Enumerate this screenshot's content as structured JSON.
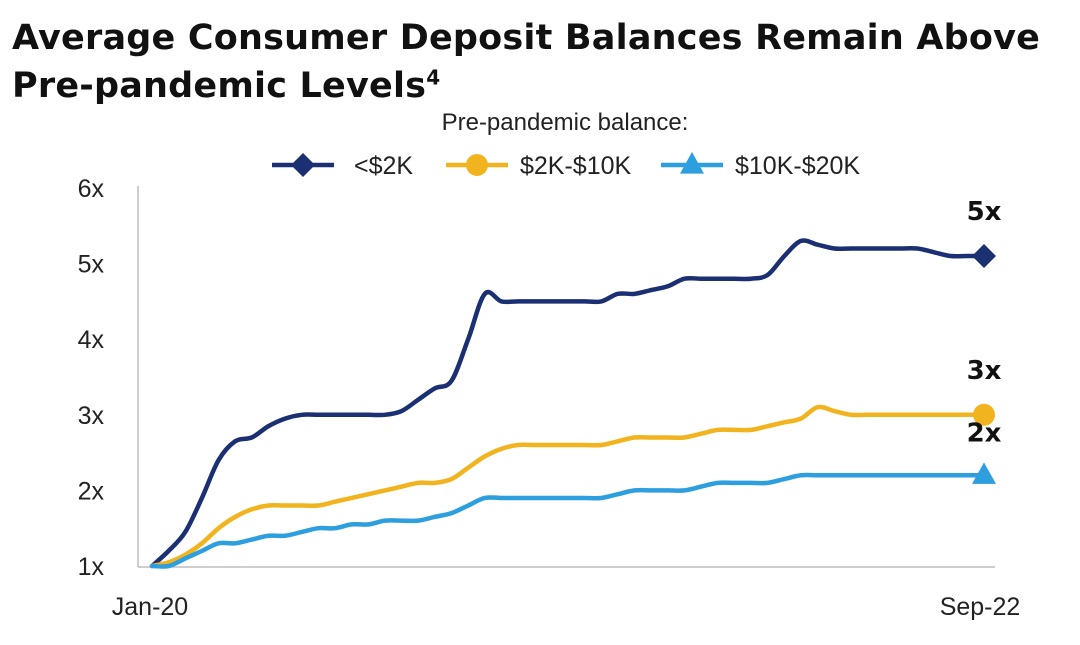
{
  "chart_data": {
    "type": "line",
    "title": "Average Consumer Deposit Balances Remain Above Pre-pandemic Levels",
    "title_superscript": "4",
    "legend_title": "Pre-pandemic balance:",
    "xlabel": "",
    "ylabel": "",
    "x_tick_labels": [
      "Jan-20",
      "Sep-22"
    ],
    "y_ticks": [
      1,
      2,
      3,
      4,
      5,
      6
    ],
    "y_tick_labels": [
      "1x",
      "2x",
      "3x",
      "4x",
      "5x",
      "6x"
    ],
    "ylim": [
      1,
      6
    ],
    "x": [
      0,
      0.02,
      0.04,
      0.06,
      0.08,
      0.1,
      0.12,
      0.14,
      0.16,
      0.18,
      0.2,
      0.22,
      0.24,
      0.26,
      0.28,
      0.3,
      0.32,
      0.34,
      0.36,
      0.38,
      0.4,
      0.42,
      0.44,
      0.46,
      0.48,
      0.5,
      0.52,
      0.54,
      0.56,
      0.58,
      0.6,
      0.62,
      0.64,
      0.66,
      0.68,
      0.7,
      0.72,
      0.74,
      0.76,
      0.78,
      0.8,
      0.82,
      0.84,
      0.86,
      0.88,
      0.9,
      0.92,
      0.94,
      0.96,
      0.98,
      1.0
    ],
    "series": [
      {
        "name": "<$2K",
        "color": "#1b2f73",
        "marker": "diamond",
        "end_label": "5x",
        "values": [
          1.0,
          1.2,
          1.45,
          1.9,
          2.4,
          2.65,
          2.7,
          2.85,
          2.95,
          3.0,
          3.0,
          3.0,
          3.0,
          3.0,
          3.0,
          3.05,
          3.2,
          3.35,
          3.45,
          4.0,
          4.6,
          4.5,
          4.5,
          4.5,
          4.5,
          4.5,
          4.5,
          4.5,
          4.6,
          4.6,
          4.65,
          4.7,
          4.8,
          4.8,
          4.8,
          4.8,
          4.8,
          4.85,
          5.1,
          5.3,
          5.25,
          5.2,
          5.2,
          5.2,
          5.2,
          5.2,
          5.2,
          5.15,
          5.1,
          5.1,
          5.1
        ]
      },
      {
        "name": "$2K-$10K",
        "color": "#f2b41e",
        "marker": "circle",
        "end_label": "3x",
        "values": [
          1.0,
          1.05,
          1.15,
          1.3,
          1.5,
          1.65,
          1.75,
          1.8,
          1.8,
          1.8,
          1.8,
          1.85,
          1.9,
          1.95,
          2.0,
          2.05,
          2.1,
          2.1,
          2.15,
          2.3,
          2.45,
          2.55,
          2.6,
          2.6,
          2.6,
          2.6,
          2.6,
          2.6,
          2.65,
          2.7,
          2.7,
          2.7,
          2.7,
          2.75,
          2.8,
          2.8,
          2.8,
          2.85,
          2.9,
          2.95,
          3.1,
          3.05,
          3.0,
          3.0,
          3.0,
          3.0,
          3.0,
          3.0,
          3.0,
          3.0,
          3.0
        ]
      },
      {
        "name": "$10K-$20K",
        "color": "#2d9fdf",
        "marker": "triangle",
        "end_label": "2x",
        "values": [
          1.0,
          1.0,
          1.1,
          1.2,
          1.3,
          1.3,
          1.35,
          1.4,
          1.4,
          1.45,
          1.5,
          1.5,
          1.55,
          1.55,
          1.6,
          1.6,
          1.6,
          1.65,
          1.7,
          1.8,
          1.9,
          1.9,
          1.9,
          1.9,
          1.9,
          1.9,
          1.9,
          1.9,
          1.95,
          2.0,
          2.0,
          2.0,
          2.0,
          2.05,
          2.1,
          2.1,
          2.1,
          2.1,
          2.15,
          2.2,
          2.2,
          2.2,
          2.2,
          2.2,
          2.2,
          2.2,
          2.2,
          2.2,
          2.2,
          2.2,
          2.2
        ]
      }
    ],
    "grid": false,
    "legend_position": "top-center"
  }
}
